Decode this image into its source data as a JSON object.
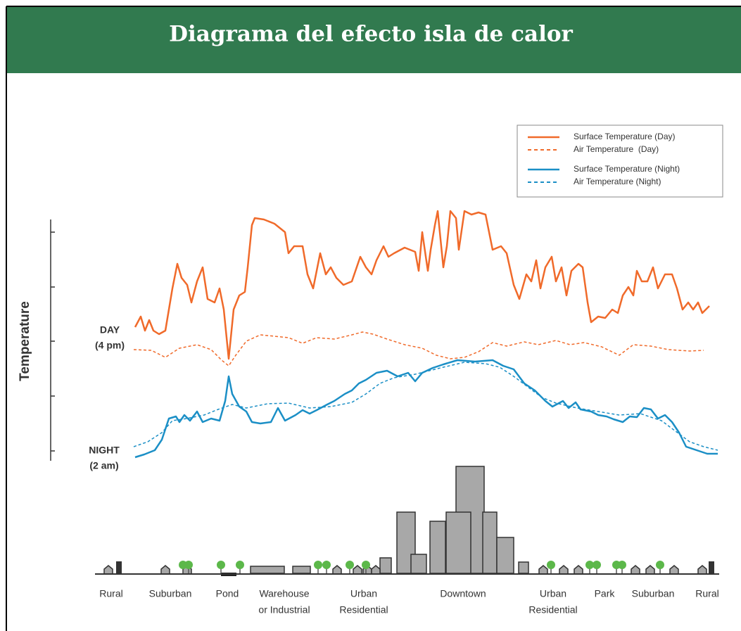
{
  "header": {
    "title": "Diagrama del efecto isla de calor"
  },
  "legend": [
    "Surface Temperature (Day)",
    "Air Temperature  (Day)",
    "Surface Temperature (Night)",
    "Air Temperature (Night)"
  ],
  "axis": {
    "label": "Temperature",
    "day": [
      "DAY",
      "(4 pm)"
    ],
    "night": [
      "NIGHT",
      "(2 am)"
    ]
  },
  "zones": [
    [
      "Rural"
    ],
    [
      "Suburban"
    ],
    [
      "Pond"
    ],
    [
      "Warehouse",
      "or Industrial"
    ],
    [
      "Urban",
      "Residential"
    ],
    [
      "Downtown"
    ],
    [
      "Urban",
      "Residential"
    ],
    [
      "Park"
    ],
    [
      "Suburban"
    ],
    [
      "Rural"
    ]
  ]
}
